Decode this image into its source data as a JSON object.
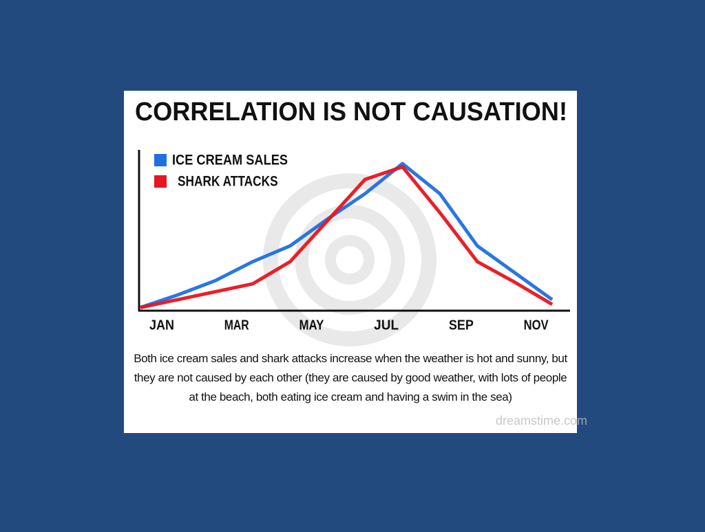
{
  "chart_data": {
    "type": "line",
    "title": "CORRELATION IS NOT CAUSATION!",
    "categories": [
      "JAN",
      null,
      "MAR",
      null,
      "MAY",
      null,
      "JUL",
      null,
      "SEP",
      null,
      "NOV",
      null
    ],
    "series": [
      {
        "name": "ICE CREAM SALES",
        "color": "#1f6fe0",
        "values": [
          2,
          10,
          19,
          31,
          41,
          58,
          74,
          93,
          74,
          41,
          24,
          7
        ]
      },
      {
        "name": "SHARK ATTACKS",
        "color": "#e8141e",
        "values": [
          2,
          7,
          12,
          17,
          31,
          57,
          83,
          91,
          62,
          31,
          18,
          4
        ]
      }
    ],
    "ylim": [
      0,
      100
    ],
    "legend": "upper left",
    "caption": "Both ice cream sales and shark attacks increase when the weather is hot and sunny, but they are not caused by each other (they are caused by good weather, with lots of people at the beach, both eating ice cream and having a swim in the sea)",
    "watermark": "dreamstime.com"
  }
}
